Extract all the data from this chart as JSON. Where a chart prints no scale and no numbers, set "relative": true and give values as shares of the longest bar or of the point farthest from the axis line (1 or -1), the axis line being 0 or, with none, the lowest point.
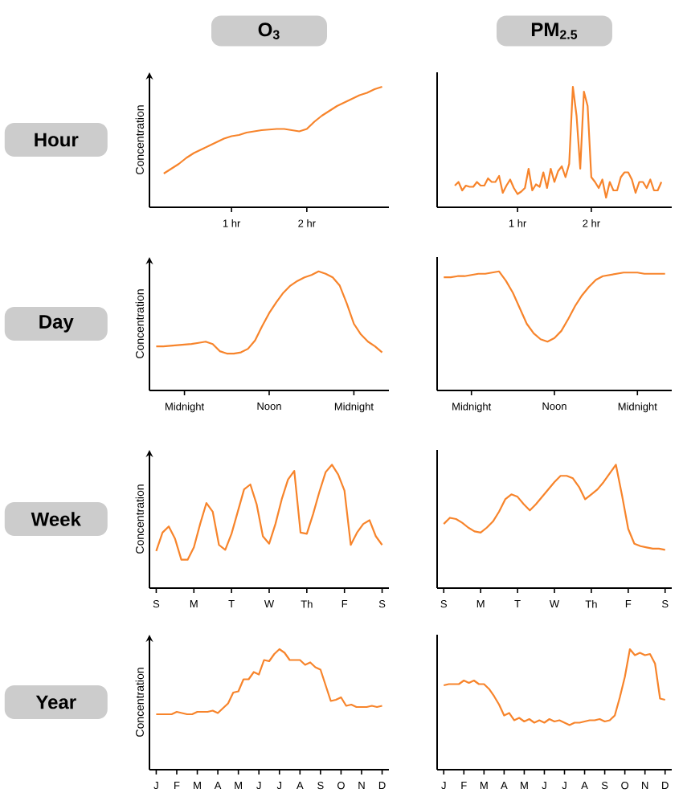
{
  "chart_data": [
    {
      "type": "line",
      "relative": true,
      "title": "O$_{3}$",
      "ylabel": "Concentration",
      "annotations": [
        "Hour"
      ],
      "color": "#f7842b",
      "categories": [
        null,
        null,
        null,
        null,
        null,
        null,
        null,
        null,
        null,
        null,
        "1 hr",
        null,
        null,
        null,
        null,
        null,
        null,
        null,
        null,
        null,
        "2 hr",
        null,
        null,
        null,
        null,
        null,
        null,
        null,
        null,
        null,
        null
      ],
      "values": [
        null,
        0.28,
        0.32,
        0.36,
        0.41,
        0.45,
        0.48,
        0.51,
        0.54,
        0.57,
        0.59,
        0.6,
        0.62,
        0.63,
        0.64,
        0.645,
        0.65,
        0.65,
        0.64,
        0.63,
        0.65,
        0.71,
        0.76,
        0.8,
        0.84,
        0.87,
        0.9,
        0.93,
        0.95,
        0.98,
        1.0
      ]
    },
    {
      "type": "line",
      "relative": true,
      "title": "PM$_{2.5}$",
      "color": "#f7842b",
      "categories": [
        null,
        null,
        null,
        null,
        null,
        null,
        null,
        null,
        null,
        null,
        null,
        null,
        null,
        null,
        null,
        null,
        null,
        null,
        null,
        null,
        "1 hr",
        null,
        null,
        null,
        null,
        null,
        null,
        null,
        null,
        null,
        null,
        null,
        null,
        null,
        null,
        null,
        null,
        null,
        null,
        null,
        "2 hr",
        null,
        null,
        null,
        null,
        null,
        null,
        null,
        null,
        null,
        null,
        null,
        null,
        null,
        null,
        null,
        null,
        null,
        null,
        null,
        null
      ],
      "values": [
        null,
        null,
        null,
        0.18,
        0.21,
        0.14,
        0.18,
        0.17,
        0.17,
        0.21,
        0.18,
        0.18,
        0.24,
        0.21,
        0.21,
        0.26,
        0.12,
        0.18,
        0.23,
        0.16,
        0.11,
        0.13,
        0.16,
        0.32,
        0.14,
        0.19,
        0.17,
        0.29,
        0.16,
        0.32,
        0.21,
        0.3,
        0.34,
        0.25,
        0.36,
        1.0,
        0.76,
        0.32,
        0.96,
        0.84,
        0.25,
        0.21,
        0.16,
        0.23,
        0.08,
        0.21,
        0.14,
        0.14,
        0.25,
        0.29,
        0.29,
        0.23,
        0.12,
        0.21,
        0.21,
        0.16,
        0.23,
        0.14,
        0.14,
        0.21,
        null
      ]
    },
    {
      "type": "line",
      "relative": true,
      "ylabel": "Concentration",
      "annotations": [
        "Day"
      ],
      "color": "#f7842b",
      "categories": [
        null,
        null,
        null,
        null,
        "Midnight",
        null,
        null,
        null,
        null,
        null,
        null,
        null,
        null,
        null,
        null,
        null,
        "Noon",
        null,
        null,
        null,
        null,
        null,
        null,
        null,
        null,
        null,
        null,
        null,
        "Midnight",
        null,
        null,
        null,
        null
      ],
      "values": [
        0.37,
        0.37,
        0.375,
        0.38,
        0.385,
        0.39,
        0.4,
        0.41,
        0.39,
        0.33,
        0.31,
        0.31,
        0.32,
        0.35,
        0.42,
        0.54,
        0.65,
        0.74,
        0.82,
        0.88,
        0.92,
        0.95,
        0.97,
        1.0,
        0.98,
        0.95,
        0.88,
        0.73,
        0.56,
        0.47,
        0.41,
        0.37,
        0.32
      ]
    },
    {
      "type": "line",
      "relative": true,
      "color": "#f7842b",
      "categories": [
        null,
        null,
        null,
        null,
        "Midnight",
        null,
        null,
        null,
        null,
        null,
        null,
        null,
        null,
        null,
        null,
        null,
        "Noon",
        null,
        null,
        null,
        null,
        null,
        null,
        null,
        null,
        null,
        null,
        null,
        "Midnight",
        null,
        null,
        null,
        null
      ],
      "values": [
        0.95,
        0.95,
        0.96,
        0.96,
        0.97,
        0.98,
        0.98,
        0.99,
        1.0,
        0.92,
        0.82,
        0.69,
        0.56,
        0.48,
        0.43,
        0.41,
        0.44,
        0.5,
        0.6,
        0.71,
        0.8,
        0.87,
        0.93,
        0.96,
        0.97,
        0.98,
        0.99,
        0.99,
        0.99,
        0.98,
        0.98,
        0.98,
        0.98
      ]
    },
    {
      "type": "line",
      "relative": true,
      "ylabel": "Concentration",
      "annotations": [
        "Week"
      ],
      "color": "#f7842b",
      "categories": [
        "S",
        null,
        null,
        null,
        null,
        null,
        "M",
        null,
        null,
        null,
        null,
        null,
        "T",
        null,
        null,
        null,
        null,
        null,
        "W",
        null,
        null,
        null,
        null,
        null,
        "Th",
        null,
        null,
        null,
        null,
        null,
        "F",
        null,
        null,
        null,
        null,
        null,
        "S"
      ],
      "values": [
        0.3,
        0.45,
        0.5,
        0.4,
        0.23,
        0.23,
        0.33,
        0.52,
        0.69,
        0.62,
        0.35,
        0.31,
        0.44,
        0.62,
        0.8,
        0.84,
        0.68,
        0.42,
        0.36,
        0.52,
        0.72,
        0.88,
        0.95,
        0.45,
        0.44,
        0.6,
        0.78,
        0.94,
        1.0,
        0.92,
        0.79,
        0.35,
        0.45,
        0.52,
        0.55,
        0.42,
        0.35
      ]
    },
    {
      "type": "line",
      "relative": true,
      "color": "#f7842b",
      "categories": [
        "S",
        null,
        null,
        null,
        null,
        null,
        "M",
        null,
        null,
        null,
        null,
        null,
        "T",
        null,
        null,
        null,
        null,
        null,
        "W",
        null,
        null,
        null,
        null,
        null,
        "Th",
        null,
        null,
        null,
        null,
        null,
        "F",
        null,
        null,
        null,
        null,
        null,
        "S"
      ],
      "values": [
        0.52,
        0.57,
        0.56,
        0.53,
        0.49,
        0.46,
        0.45,
        0.49,
        0.54,
        0.62,
        0.72,
        0.76,
        0.74,
        0.68,
        0.63,
        0.68,
        0.74,
        0.8,
        0.86,
        0.91,
        0.91,
        0.89,
        0.82,
        0.72,
        0.76,
        0.8,
        0.86,
        0.93,
        1.0,
        0.75,
        0.48,
        0.36,
        0.34,
        0.33,
        0.32,
        0.32,
        0.31
      ]
    },
    {
      "type": "line",
      "relative": true,
      "ylabel": "Concentration",
      "annotations": [
        "Year"
      ],
      "color": "#f7842b",
      "categories": [
        "J",
        null,
        null,
        null,
        "F",
        null,
        null,
        null,
        "M",
        null,
        null,
        null,
        "A",
        null,
        null,
        null,
        "M",
        null,
        null,
        null,
        "J",
        null,
        null,
        null,
        "J",
        null,
        null,
        null,
        "A",
        null,
        null,
        null,
        "S",
        null,
        null,
        null,
        "O",
        null,
        null,
        null,
        "N",
        null,
        null,
        null,
        "D"
      ],
      "values": [
        0.46,
        0.46,
        0.46,
        0.46,
        0.48,
        0.47,
        0.46,
        0.46,
        0.48,
        0.48,
        0.48,
        0.49,
        0.47,
        0.51,
        0.55,
        0.64,
        0.65,
        0.75,
        0.75,
        0.81,
        0.79,
        0.91,
        0.9,
        0.96,
        1.0,
        0.97,
        0.91,
        0.91,
        0.91,
        0.87,
        0.89,
        0.85,
        0.83,
        0.7,
        0.57,
        0.58,
        0.6,
        0.53,
        0.54,
        0.52,
        0.52,
        0.52,
        0.53,
        0.52,
        0.53
      ]
    },
    {
      "type": "line",
      "relative": true,
      "color": "#f7842b",
      "categories": [
        "J",
        null,
        null,
        null,
        "F",
        null,
        null,
        null,
        "M",
        null,
        null,
        null,
        "A",
        null,
        null,
        null,
        "M",
        null,
        null,
        null,
        "J",
        null,
        null,
        null,
        "J",
        null,
        null,
        null,
        "A",
        null,
        null,
        null,
        "S",
        null,
        null,
        null,
        "O",
        null,
        null,
        null,
        "N",
        null,
        null,
        null,
        "D"
      ],
      "values": [
        0.7,
        0.71,
        0.71,
        0.71,
        0.74,
        0.72,
        0.74,
        0.71,
        0.71,
        0.67,
        0.61,
        0.54,
        0.45,
        0.47,
        0.41,
        0.43,
        0.4,
        0.42,
        0.39,
        0.41,
        0.39,
        0.42,
        0.4,
        0.41,
        0.39,
        0.37,
        0.39,
        0.39,
        0.4,
        0.41,
        0.41,
        0.42,
        0.4,
        0.41,
        0.45,
        0.6,
        0.77,
        1.0,
        0.95,
        0.97,
        0.95,
        0.96,
        0.88,
        0.59,
        0.58
      ]
    }
  ]
}
